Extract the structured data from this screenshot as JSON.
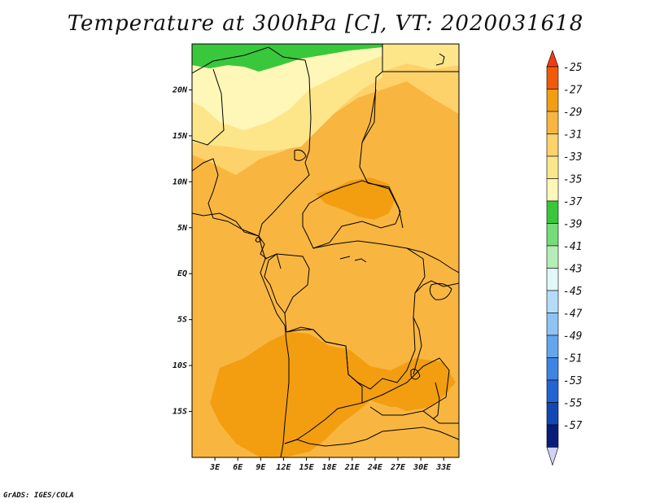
{
  "title": "Temperature at 300hPa [C], VT: 2020031618",
  "credit": "GrADS: IGES/COLA",
  "map": {
    "lon_range": [
      0,
      35
    ],
    "lat_range": [
      -20,
      25
    ],
    "x_ticks": [
      {
        "lon": 3,
        "label": "3E"
      },
      {
        "lon": 6,
        "label": "6E"
      },
      {
        "lon": 9,
        "label": "9E"
      },
      {
        "lon": 12,
        "label": "12E"
      },
      {
        "lon": 15,
        "label": "15E"
      },
      {
        "lon": 18,
        "label": "18E"
      },
      {
        "lon": 21,
        "label": "21E"
      },
      {
        "lon": 24,
        "label": "24E"
      },
      {
        "lon": 27,
        "label": "27E"
      },
      {
        "lon": 30,
        "label": "30E"
      },
      {
        "lon": 33,
        "label": "33E"
      }
    ],
    "y_ticks": [
      {
        "lat": 20,
        "label": "20N"
      },
      {
        "lat": 15,
        "label": "15N"
      },
      {
        "lat": 10,
        "label": "10N"
      },
      {
        "lat": 5,
        "label": "5N"
      },
      {
        "lat": 0,
        "label": "EQ"
      },
      {
        "lat": -5,
        "label": "5S"
      },
      {
        "lat": -10,
        "label": "10S"
      },
      {
        "lat": -15,
        "label": "15S"
      }
    ],
    "colors": {
      "t37": "#39c83c",
      "t35": "#fff7b8",
      "t33": "#fde68a",
      "t31": "#fdd26a",
      "t29": "#f8b640",
      "t27": "#f29e10",
      "border": "#000000"
    }
  },
  "colorbar": {
    "levels": [
      {
        "label": "-25",
        "color": "#f05a0a"
      },
      {
        "label": "-27",
        "color": "#f29e10"
      },
      {
        "label": "-29",
        "color": "#f8b640"
      },
      {
        "label": "-31",
        "color": "#fdd26a"
      },
      {
        "label": "-33",
        "color": "#fde68a"
      },
      {
        "label": "-35",
        "color": "#fff7b8"
      },
      {
        "label": "-37",
        "color": "#39c83c"
      },
      {
        "label": "-39",
        "color": "#74dc78"
      },
      {
        "label": "-41",
        "color": "#b5eeb5"
      },
      {
        "label": "-43",
        "color": "#e2f8f8"
      },
      {
        "label": "-45",
        "color": "#b4dcf8"
      },
      {
        "label": "-47",
        "color": "#8ec4f4"
      },
      {
        "label": "-49",
        "color": "#64a6ee"
      },
      {
        "label": "-51",
        "color": "#3e84e4"
      },
      {
        "label": "-53",
        "color": "#2264d2"
      },
      {
        "label": "-55",
        "color": "#1248b4"
      },
      {
        "label": "-57",
        "color": "#0a1c7a"
      }
    ],
    "top_cap_color": "#f03c14",
    "bottom_cap_color": "#d2d2f4"
  }
}
